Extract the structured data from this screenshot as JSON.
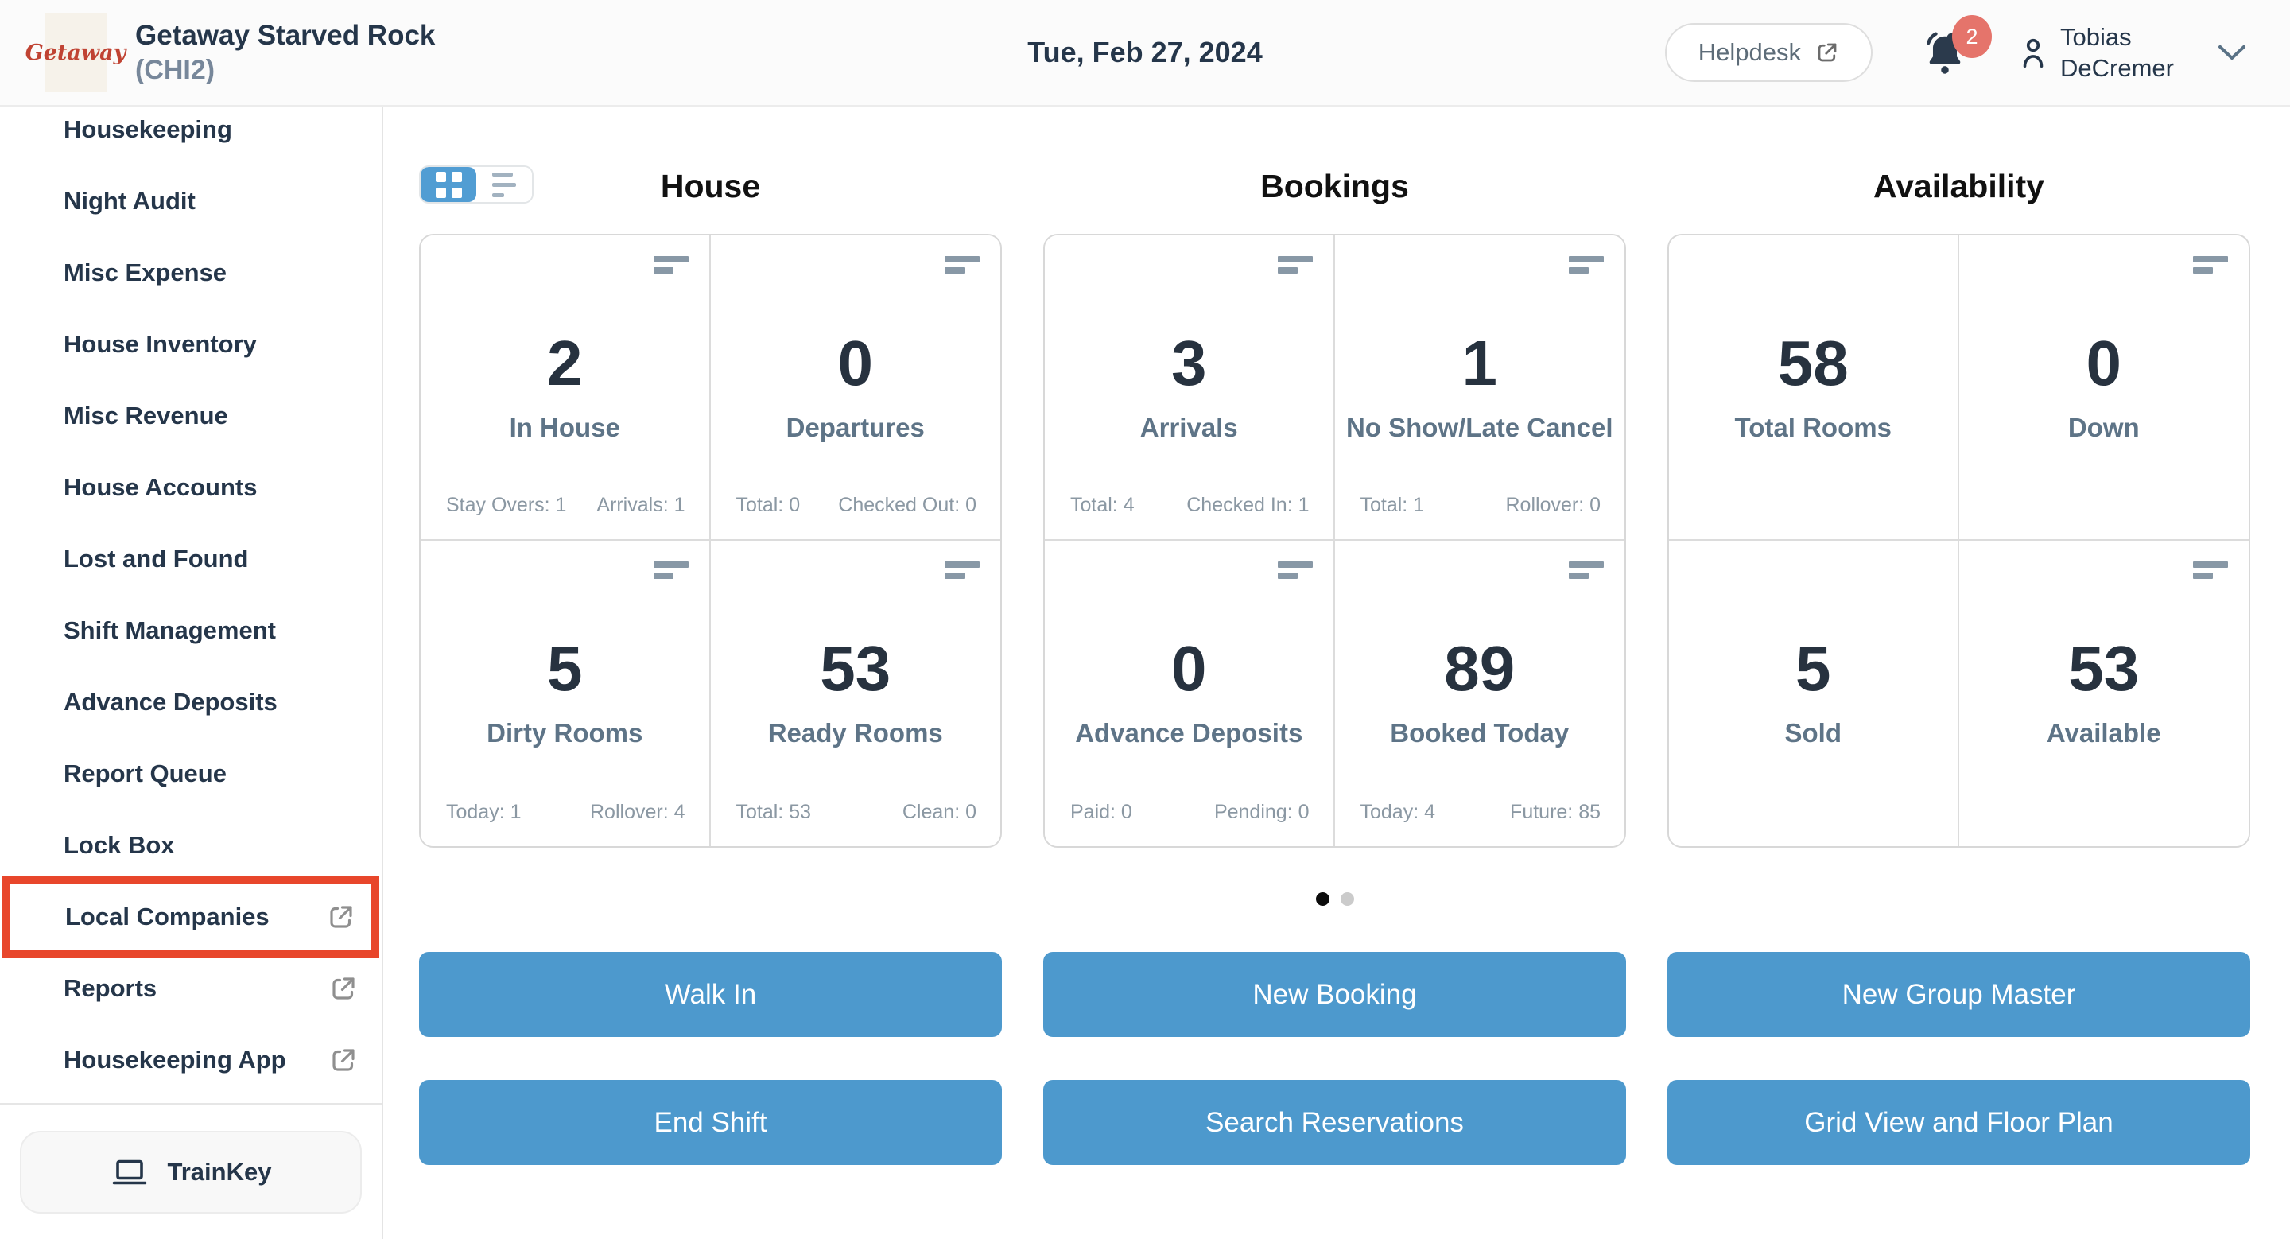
{
  "header": {
    "logo_text": "Getaway",
    "property_name": "Getaway Starved Rock",
    "property_code": "(CHI2)",
    "date": "Tue, Feb 27, 2024",
    "helpdesk_label": "Helpdesk",
    "notification_count": "2",
    "user_name_line1": "Tobias",
    "user_name_line2": "DeCremer"
  },
  "sidebar": {
    "items": [
      {
        "label": "Housekeeping",
        "external": false,
        "highlighted": false
      },
      {
        "label": "Night Audit",
        "external": false,
        "highlighted": false
      },
      {
        "label": "Misc Expense",
        "external": false,
        "highlighted": false
      },
      {
        "label": "House Inventory",
        "external": false,
        "highlighted": false
      },
      {
        "label": "Misc Revenue",
        "external": false,
        "highlighted": false
      },
      {
        "label": "House Accounts",
        "external": false,
        "highlighted": false
      },
      {
        "label": "Lost and Found",
        "external": false,
        "highlighted": false
      },
      {
        "label": "Shift Management",
        "external": false,
        "highlighted": false
      },
      {
        "label": "Advance Deposits",
        "external": false,
        "highlighted": false
      },
      {
        "label": "Report Queue",
        "external": false,
        "highlighted": false
      },
      {
        "label": "Lock Box",
        "external": false,
        "highlighted": false
      },
      {
        "label": "Local Companies",
        "external": true,
        "highlighted": true
      },
      {
        "label": "Reports",
        "external": true,
        "highlighted": false
      },
      {
        "label": "Housekeeping App",
        "external": true,
        "highlighted": false
      }
    ],
    "trainkey_label": "TrainKey"
  },
  "dashboard": {
    "sections": [
      {
        "title": "House",
        "cards": [
          {
            "value": "2",
            "label": "In House",
            "icon": true,
            "stats": [
              "Stay Overs: 1",
              "Arrivals: 1"
            ]
          },
          {
            "value": "0",
            "label": "Departures",
            "icon": true,
            "stats": [
              "Total: 0",
              "Checked Out: 0"
            ]
          },
          {
            "value": "5",
            "label": "Dirty Rooms",
            "icon": true,
            "stats": [
              "Today: 1",
              "Rollover: 4"
            ]
          },
          {
            "value": "53",
            "label": "Ready Rooms",
            "icon": true,
            "stats": [
              "Total: 53",
              "Clean: 0"
            ]
          }
        ]
      },
      {
        "title": "Bookings",
        "cards": [
          {
            "value": "3",
            "label": "Arrivals",
            "icon": true,
            "stats": [
              "Total: 4",
              "Checked In: 1"
            ]
          },
          {
            "value": "1",
            "label": "No Show/Late Cancel",
            "icon": true,
            "stats": [
              "Total: 1",
              "Rollover: 0"
            ]
          },
          {
            "value": "0",
            "label": "Advance Deposits",
            "icon": true,
            "stats": [
              "Paid: 0",
              "Pending: 0"
            ]
          },
          {
            "value": "89",
            "label": "Booked Today",
            "icon": true,
            "stats": [
              "Today: 4",
              "Future: 85"
            ]
          }
        ]
      },
      {
        "title": "Availability",
        "cards": [
          {
            "value": "58",
            "label": "Total Rooms",
            "icon": false,
            "stats": []
          },
          {
            "value": "0",
            "label": "Down",
            "icon": true,
            "stats": []
          },
          {
            "value": "5",
            "label": "Sold",
            "icon": false,
            "stats": []
          },
          {
            "value": "53",
            "label": "Available",
            "icon": true,
            "stats": []
          }
        ]
      }
    ],
    "pagination": {
      "dots": [
        {
          "active": true
        },
        {
          "active": false
        }
      ]
    },
    "action_buttons": [
      [
        "Walk In",
        "New Booking",
        "New Group Master"
      ],
      [
        "End Shift",
        "Search Reservations",
        "Grid View and Floor Plan"
      ]
    ]
  },
  "colors": {
    "accent_blue": "#4d99cd",
    "toggle_blue": "#519dd3",
    "highlight_red": "#e8462b",
    "badge_red": "#e5746b",
    "navy": "#25364a"
  }
}
